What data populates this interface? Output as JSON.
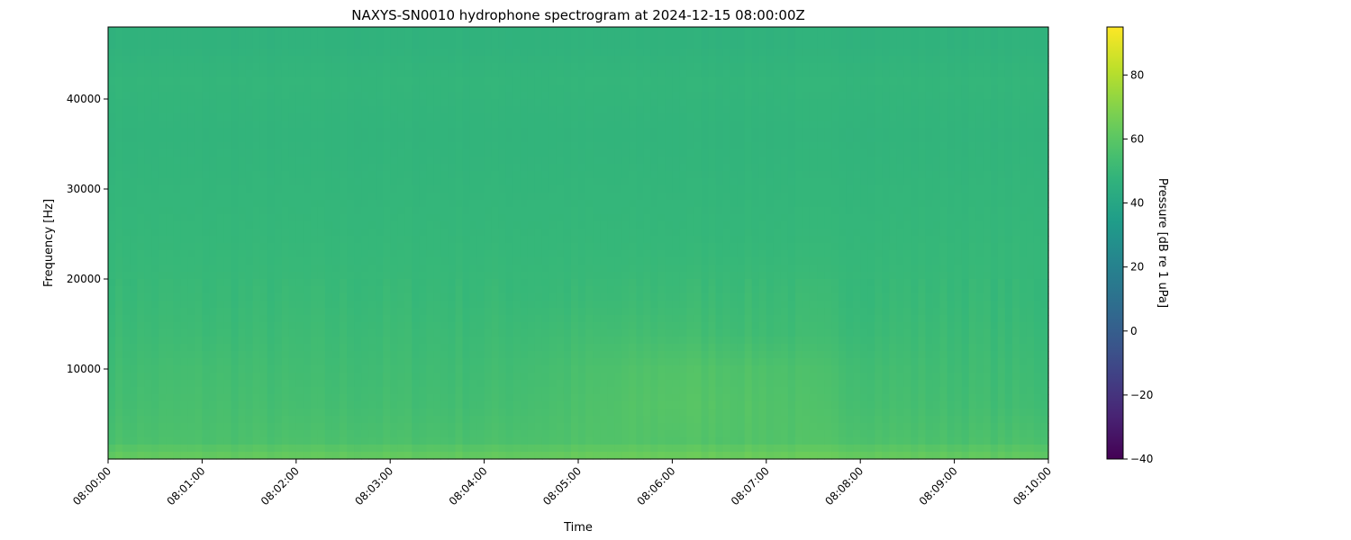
{
  "chart_data": {
    "type": "heatmap",
    "title": "NAXYS-SN0010 hydrophone spectrogram at 2024-12-15 08:00:00Z",
    "xlabel": "Time",
    "ylabel": "Frequency [Hz]",
    "colorbar_label": "Pressure [dB re 1 uPa]",
    "colormap": "viridis",
    "colorbar_range": [
      -40,
      95
    ],
    "colorbar_ticks": [
      -40,
      -20,
      0,
      20,
      40,
      60,
      80
    ],
    "colorbar_tick_labels": [
      "−40",
      "−20",
      "0",
      "20",
      "40",
      "60",
      "80"
    ],
    "xlim": [
      "08:00:00",
      "08:10:00"
    ],
    "x_ticks": [
      "08:00:00",
      "08:01:00",
      "08:02:00",
      "08:03:00",
      "08:04:00",
      "08:05:00",
      "08:06:00",
      "08:07:00",
      "08:08:00",
      "08:09:00",
      "08:10:00"
    ],
    "ylim": [
      0,
      48000
    ],
    "y_ticks": [
      10000,
      20000,
      30000,
      40000
    ],
    "y_tick_labels": [
      "10000",
      "20000",
      "30000",
      "40000"
    ],
    "grid": false,
    "times": [
      "08:00:00",
      "08:01:00",
      "08:02:00",
      "08:03:00",
      "08:04:00",
      "08:05:00",
      "08:06:00",
      "08:07:00",
      "08:08:00",
      "08:09:00",
      "08:10:00"
    ],
    "frequencies_hz": [
      500,
      2000,
      6000,
      10000,
      14000,
      18000,
      24000,
      30000,
      36000,
      42000,
      46000
    ],
    "values_db": [
      [
        62,
        62,
        62,
        62,
        62,
        63,
        64,
        64,
        63,
        62,
        61
      ],
      [
        56,
        56,
        56,
        56,
        56,
        57,
        58,
        58,
        57,
        56,
        56
      ],
      [
        54,
        55,
        54,
        54,
        54,
        56,
        59,
        58,
        55,
        54,
        53
      ],
      [
        53,
        54,
        53,
        53,
        53,
        55,
        58,
        57,
        54,
        53,
        52
      ],
      [
        52,
        52,
        52,
        52,
        52,
        53,
        54,
        53,
        52,
        52,
        51
      ],
      [
        51,
        51,
        51,
        51,
        51,
        51,
        52,
        52,
        51,
        51,
        50
      ],
      [
        50,
        50,
        50,
        50,
        50,
        50,
        50,
        50,
        50,
        50,
        50
      ],
      [
        49,
        49,
        49,
        49,
        49,
        49,
        49,
        49,
        49,
        49,
        49
      ],
      [
        48,
        48,
        48,
        48,
        48,
        48,
        48,
        48,
        48,
        48,
        48
      ],
      [
        49,
        49,
        49,
        49,
        49,
        49,
        49,
        49,
        49,
        49,
        49
      ],
      [
        47,
        47,
        47,
        47,
        47,
        47,
        47,
        47,
        47,
        47,
        47
      ]
    ]
  }
}
